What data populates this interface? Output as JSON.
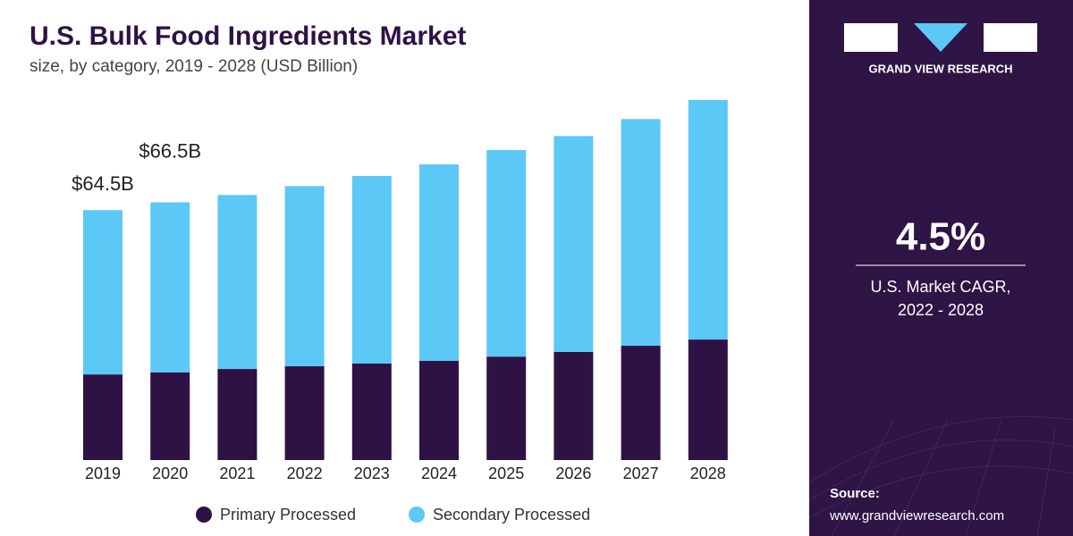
{
  "chart_data": {
    "type": "stacked_bar",
    "title": "U.S. Bulk Food Ingredients Market",
    "subtitle": "size, by category, 2019 - 2028 (USD Billion)",
    "categories": [
      "2019",
      "2020",
      "2021",
      "2022",
      "2023",
      "2024",
      "2025",
      "2026",
      "2027",
      "2028"
    ],
    "series": [
      {
        "name": "Primary Processed",
        "color": "#2f1244",
        "values": [
          22.1,
          22.6,
          23.5,
          24.2,
          24.9,
          25.6,
          26.7,
          27.9,
          29.5,
          31.1
        ]
      },
      {
        "name": "Secondary Processed",
        "color": "#5bc8f5",
        "values": [
          42.4,
          43.9,
          44.9,
          46.5,
          48.4,
          50.7,
          53.3,
          55.7,
          58.5,
          61.8
        ]
      }
    ],
    "total_labels": [
      {
        "category": "2019",
        "value": 64.5,
        "label": "$64.5B"
      },
      {
        "category": "2020",
        "value": 66.5,
        "label": "$66.5B"
      }
    ]
  },
  "sidebar": {
    "brand": "GRAND VIEW RESEARCH",
    "cagr": "4.5%",
    "cagr_caption": [
      "U.S. Market CAGR,",
      "2022 - 2028"
    ],
    "source_label": "Source:",
    "source_url": "www.grandviewresearch.com"
  }
}
